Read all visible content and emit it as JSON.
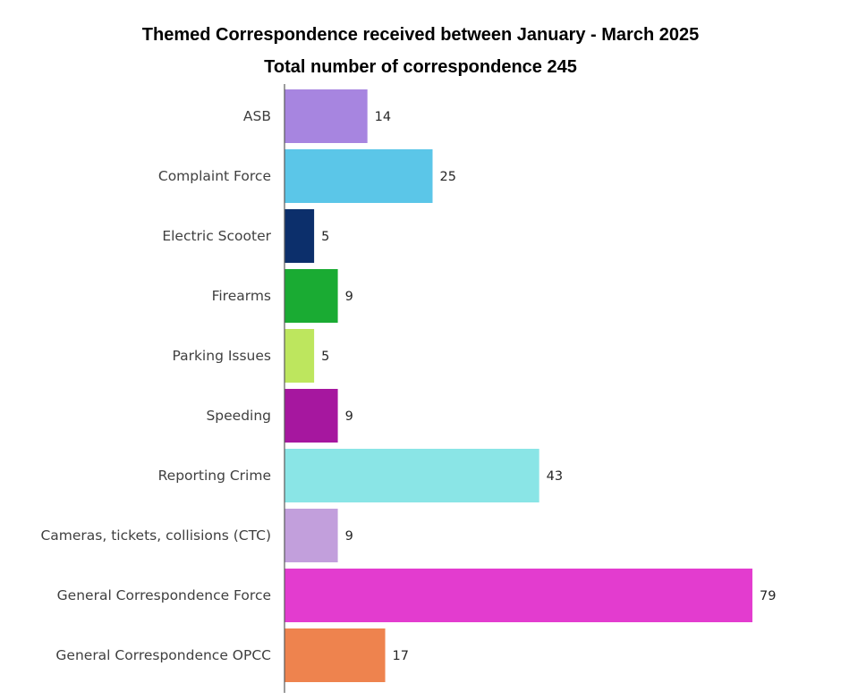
{
  "chart_data": {
    "type": "bar",
    "orientation": "horizontal",
    "title": "Themed Correspondence received between January - March 2025",
    "subtitle": "Total number of correspondence 245",
    "categories": [
      "ASB",
      "Complaint Force",
      "Electric Scooter",
      "Firearms",
      "Parking Issues",
      "Speeding",
      "Reporting Crime",
      "Cameras, tickets, collisions (CTC)",
      "General Correspondence Force",
      "General Correspondence OPCC"
    ],
    "values": [
      14,
      25,
      5,
      9,
      5,
      9,
      43,
      9,
      79,
      17
    ],
    "colors": [
      "#a785e0",
      "#5bc6e8",
      "#0c2f6b",
      "#1aab33",
      "#bde65e",
      "#a6179f",
      "#8ae5e6",
      "#c29fdc",
      "#e33ccf",
      "#ee834e"
    ],
    "data_labels": true,
    "xlim": [
      0,
      80
    ],
    "xaxis_visible": false,
    "grid": false,
    "legend": "none"
  }
}
